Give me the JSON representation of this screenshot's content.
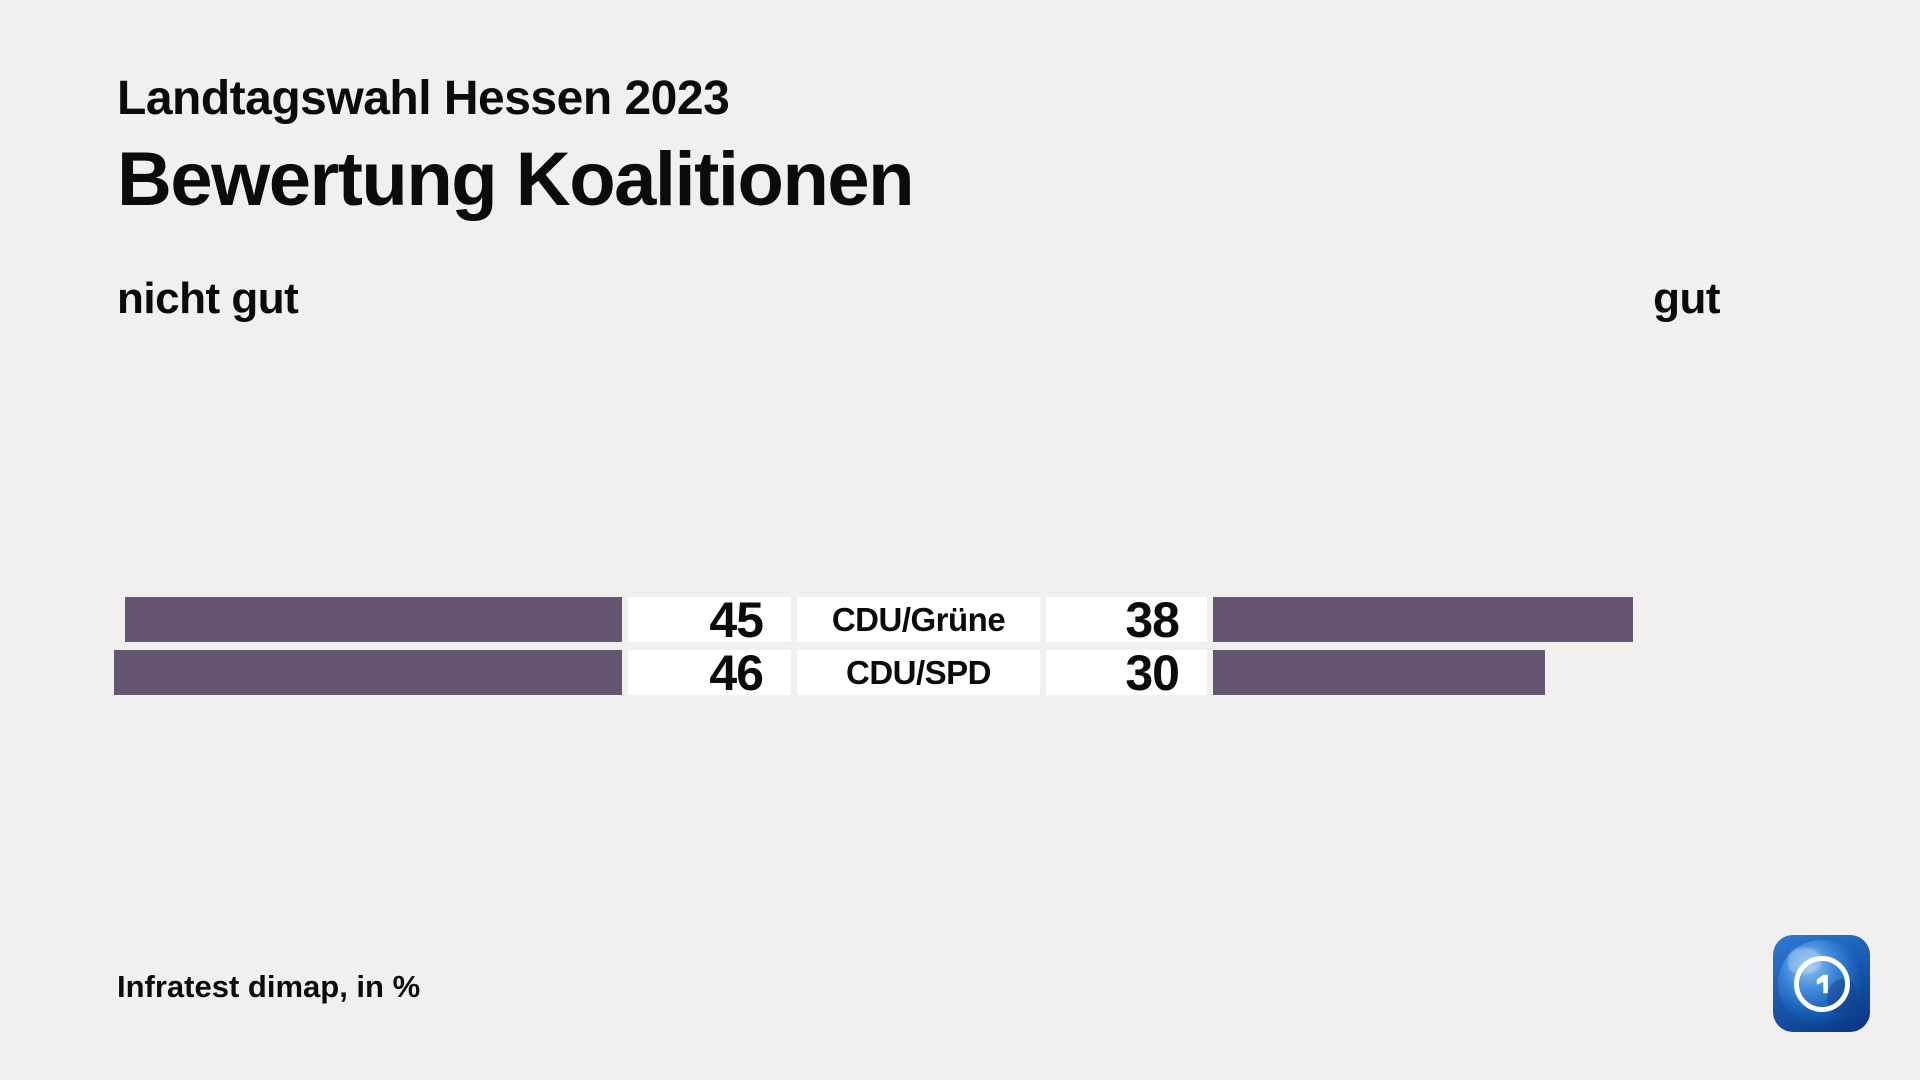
{
  "page": {
    "background_color": "#f1f0ee",
    "text_color": "#0b0b0b"
  },
  "header": {
    "subtitle": "Landtagswahl Hessen 2023",
    "title": "Bewertung Koalitionen"
  },
  "axis": {
    "left_label": "nicht gut",
    "right_label": "gut"
  },
  "source": "Infratest dimap, in %",
  "logo": {
    "name": "ARD tagesschau globe",
    "digit": "1"
  },
  "chart_data": {
    "type": "bar",
    "orientation": "diverging-horizontal",
    "title": "Bewertung Koalitionen",
    "subtitle": "Landtagswahl Hessen 2023",
    "categories": [
      "CDU/Grüne",
      "CDU/SPD"
    ],
    "series": [
      {
        "name": "nicht gut",
        "side": "left",
        "values": [
          45,
          46
        ]
      },
      {
        "name": "gut",
        "side": "right",
        "values": [
          38,
          30
        ]
      }
    ],
    "unit": "%",
    "value_range": [
      0,
      100
    ],
    "grid": false,
    "legend_position": "top-as-axis-labels",
    "bar_color": "#655570",
    "strip_color": "#ffffff",
    "source": "Infratest dimap, in %"
  }
}
